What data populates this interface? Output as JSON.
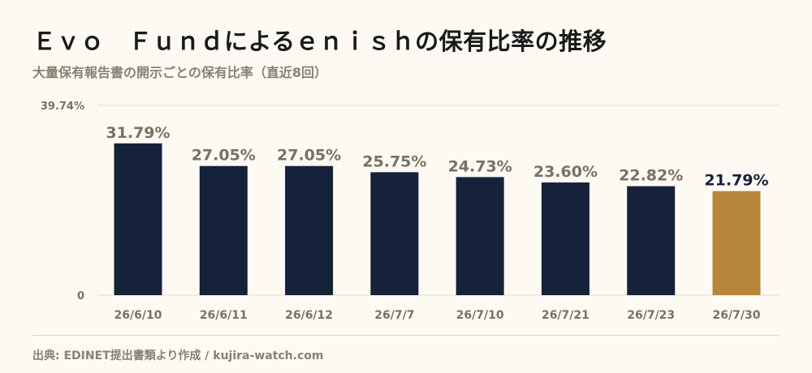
{
  "title": "Ｅｖｏ　Ｆｕｎｄによるｅｎｉｓｈの保有比率の推移",
  "subtitle": "大量保有報告書の開示ごとの保有比率（直近8回）",
  "source": "出典: EDINET提出書類より作成 / kujira-watch.com",
  "colors": {
    "bar": "#16213a",
    "highlight": "#b8863b",
    "label": "#7a7064",
    "highlight_label": "#16213a",
    "grid": "#e2dccd"
  },
  "chart_data": {
    "type": "bar",
    "categories": [
      "26/6/10",
      "26/6/11",
      "26/6/12",
      "26/7/7",
      "26/7/10",
      "26/7/21",
      "26/7/23",
      "26/7/30"
    ],
    "values": [
      31.79,
      27.05,
      27.05,
      25.75,
      24.73,
      23.6,
      22.82,
      21.79
    ],
    "value_labels": [
      "31.79%",
      "27.05%",
      "27.05%",
      "25.75%",
      "24.73%",
      "23.60%",
      "22.82%",
      "21.79%"
    ],
    "highlight_index": 7,
    "ylim": [
      0,
      39.74
    ],
    "ytick_labels": [
      "0",
      "39.74%"
    ],
    "grid": true,
    "legend": "none"
  }
}
